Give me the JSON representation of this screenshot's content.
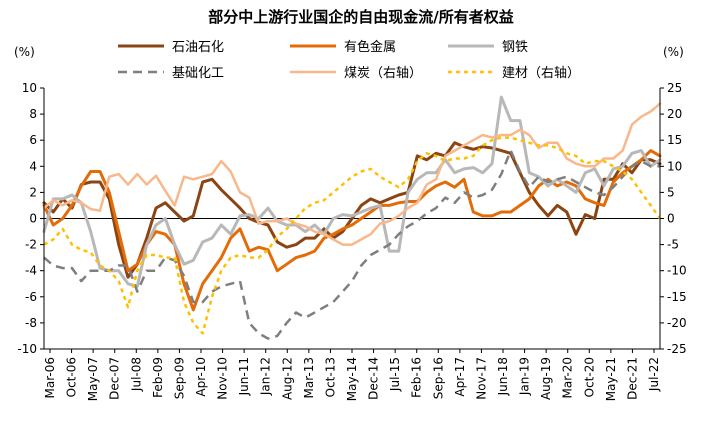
{
  "chart_data": {
    "type": "line",
    "title": "部分中上游行业国企的自由现金流/所有者权益",
    "left_unit": "(%)",
    "right_unit": "(%)",
    "ylim_left": [
      -10,
      10
    ],
    "ylim_right": [
      -25,
      25
    ],
    "yticks_left": [
      "10",
      "8",
      "6",
      "4",
      "2",
      "0",
      "-2",
      "-4",
      "-6",
      "-8",
      "-10"
    ],
    "yticks_right": [
      "25",
      "20",
      "15",
      "10",
      "5",
      "0",
      "-5",
      "-10",
      "-15",
      "-20",
      "-25"
    ],
    "x_tick_labels": [
      "Mar-06",
      "Oct-06",
      "May-07",
      "Dec-07",
      "Jul-08",
      "Feb-09",
      "Sep-09",
      "Apr-10",
      "Nov-10",
      "Jun-11",
      "Jan-12",
      "Aug-12",
      "Mar-13",
      "Oct-13",
      "May-14",
      "Dec-14",
      "Jul-15",
      "Feb-16",
      "Sep-16",
      "Apr-17",
      "Nov-17",
      "Jun-18",
      "Jan-19",
      "Aug-19",
      "Mar-20",
      "Oct-20",
      "May-21",
      "Dec-21",
      "Jul-22"
    ],
    "x_count": 67,
    "series": [
      {
        "name": "石油石化",
        "color": "#8B4513",
        "dash": "solid",
        "width": 3,
        "axis": "left",
        "values": [
          1.2,
          0.5,
          1.5,
          0.8,
          2.6,
          2.8,
          2.8,
          1.5,
          -2,
          -4.5,
          -3.5,
          -1.5,
          0.8,
          1.2,
          0.5,
          -0.2,
          0.2,
          2.8,
          3,
          2.2,
          1.5,
          0.8,
          0,
          -0.3,
          -0.5,
          -1.8,
          -2.2,
          -2,
          -1.5,
          -1.5,
          -0.8,
          -1.5,
          -1,
          0,
          1,
          1.5,
          1.2,
          1.5,
          1.8,
          2,
          4.8,
          4.5,
          5,
          4.8,
          5.8,
          5.5,
          5.3,
          5.5,
          5.4,
          5.2,
          5,
          3.5,
          2,
          1,
          0.2,
          1,
          0.5,
          -1.2,
          0.3,
          0,
          3,
          3,
          4.2,
          3.5,
          4.5,
          4.5,
          4.2
        ]
      },
      {
        "name": "有色金属",
        "color": "#E36C09",
        "dash": "solid",
        "width": 3,
        "axis": "left",
        "values": [
          1,
          -0.5,
          0,
          1,
          2.5,
          3.6,
          3.6,
          2,
          -1,
          -4,
          -3.5,
          -2,
          -1,
          -1.2,
          -2,
          -5,
          -7,
          -5,
          -4,
          -3,
          -1.5,
          -0.8,
          -2.5,
          -2.2,
          -2.4,
          -4,
          -3.5,
          -3,
          -2.8,
          -2.5,
          -1.5,
          -1.2,
          -0.8,
          -0.5,
          0,
          0.5,
          1,
          1,
          1.2,
          1.3,
          1.3,
          2,
          2.5,
          2.8,
          2.4,
          3,
          0.5,
          0.2,
          0.2,
          0.5,
          0.5,
          1,
          1.5,
          2.5,
          3,
          2.5,
          2.8,
          2.5,
          1.5,
          1.2,
          1,
          2.8,
          3.5,
          4,
          4.5,
          5.2,
          4.8
        ]
      },
      {
        "name": "钢铁",
        "color": "#B8B8B8",
        "dash": "solid",
        "width": 3,
        "axis": "left",
        "values": [
          -1,
          1.5,
          1.5,
          1.8,
          1.2,
          -1,
          -3.8,
          -4,
          -4,
          -5,
          -5.2,
          -2,
          -0.5,
          0,
          -2,
          -3.5,
          -3.2,
          -1.8,
          -1.5,
          -0.5,
          -1.2,
          0.2,
          0.3,
          0,
          0.8,
          -0.2,
          -0.5,
          -0.5,
          -1,
          -0.5,
          -1.2,
          0,
          0.3,
          0.2,
          0.5,
          0.8,
          1,
          -2.5,
          -2.5,
          2,
          3,
          3.5,
          3.5,
          4.5,
          3.5,
          3.8,
          3.9,
          3.5,
          4.2,
          9.3,
          7.5,
          7.5,
          3.5,
          3.2,
          2.5,
          3,
          2.5,
          2,
          3.5,
          3.8,
          2.5,
          3.8,
          4,
          5,
          5.2,
          4,
          4.5
        ]
      },
      {
        "name": "基础化工",
        "color": "#7F7F7F",
        "dash": "dash",
        "width": 2.5,
        "axis": "right",
        "values": [
          -7.5,
          -9,
          -9.5,
          -9.5,
          -12,
          -10,
          -10,
          -10,
          -9,
          -9,
          -14,
          -10,
          -10,
          -7.5,
          -8,
          -11,
          -16,
          -16,
          -14,
          -13,
          -12.5,
          -12,
          -20,
          -22,
          -23,
          -22.5,
          -20,
          -18,
          -19,
          -18,
          -17,
          -16,
          -14,
          -12,
          -9,
          -7,
          -6,
          -5,
          -3,
          -1.5,
          -0.5,
          1,
          2,
          4,
          3,
          5,
          4,
          4.5,
          5.5,
          8.5,
          13,
          9,
          6,
          8,
          7,
          7.5,
          8,
          7,
          6,
          5,
          4.5,
          6,
          8,
          10,
          11,
          10,
          10
        ]
      },
      {
        "name": "煤炭（右轴）",
        "color": "#F8B88B",
        "dash": "solid",
        "width": 2.5,
        "axis": "right",
        "values": [
          2,
          3.5,
          2.5,
          3.5,
          3,
          1.8,
          1.5,
          8,
          8.5,
          6.5,
          8.5,
          6.5,
          8.2,
          5.3,
          2.5,
          8,
          7.5,
          8,
          8.5,
          11,
          9,
          5,
          4,
          -1,
          -0.5,
          -0.5,
          0,
          -1,
          -1.5,
          -2.5,
          -3,
          -4,
          -5,
          -5,
          -4,
          -3,
          -1,
          -0.5,
          0.5,
          2,
          3,
          6.5,
          7.5,
          12,
          13,
          14,
          15,
          16,
          15.5,
          16,
          16,
          17,
          16,
          13.5,
          14.5,
          14.5,
          11.5,
          10.5,
          10,
          10,
          11.5,
          11.5,
          13,
          18,
          19.5,
          20.5,
          22
        ]
      },
      {
        "name": "建材（右轴）",
        "color": "#FFC000",
        "dash": "dot",
        "width": 2.5,
        "axis": "right",
        "values": [
          -5,
          -4,
          -2,
          -5,
          -6,
          -6.5,
          -9,
          -10,
          -12,
          -17,
          -10,
          -7,
          -7,
          -7.5,
          -7.5,
          -16,
          -20,
          -22,
          -15,
          -10,
          -7.5,
          -7,
          -7.5,
          -7.5,
          -6,
          -3.5,
          -2,
          0,
          2,
          3,
          3.5,
          5,
          6.5,
          8,
          9,
          9.5,
          8,
          7,
          6,
          7.5,
          11,
          12.5,
          12,
          11,
          11.5,
          11.5,
          12,
          14,
          15,
          15.5,
          15.5,
          15,
          14.5,
          14,
          14,
          13.5,
          12.5,
          12,
          10.5,
          11,
          11,
          10,
          9,
          7.5,
          5,
          2.5,
          0
        ]
      }
    ]
  }
}
